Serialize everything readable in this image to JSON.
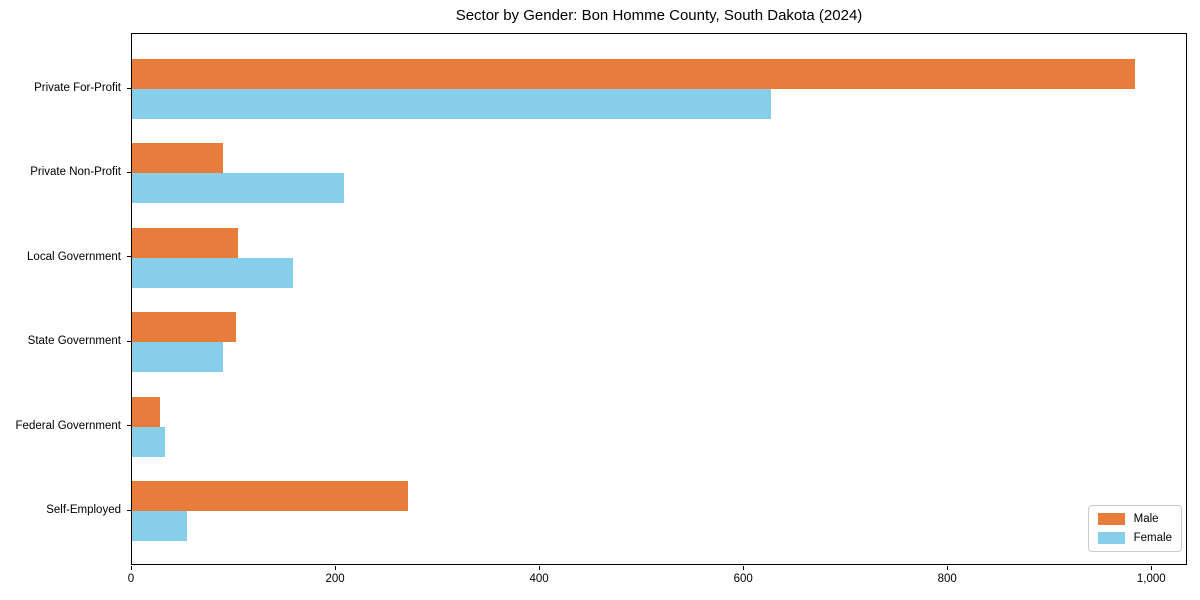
{
  "chart_data": {
    "type": "bar",
    "orientation": "horizontal",
    "title": "Sector by Gender: Bon Homme County, South Dakota (2024)",
    "categories": [
      "Private For-Profit",
      "Private Non-Profit",
      "Local Government",
      "State Government",
      "Federal Government",
      "Self-Employed"
    ],
    "series": [
      {
        "name": "Male",
        "color": "#e87d3b",
        "values": [
          983,
          89,
          104,
          102,
          27,
          270
        ]
      },
      {
        "name": "Female",
        "color": "#87ceeb",
        "values": [
          626,
          208,
          158,
          89,
          32,
          54
        ]
      }
    ],
    "xlabel": "",
    "ylabel": "",
    "xlim": [
      0,
      1035
    ],
    "x_ticks": [
      0,
      200,
      400,
      600,
      800,
      1000
    ],
    "x_tick_labels": [
      "0",
      "200",
      "400",
      "600",
      "800",
      "1,000"
    ],
    "grid": false,
    "legend": {
      "position": "lower-right",
      "entries": [
        "Male",
        "Female"
      ]
    }
  }
}
